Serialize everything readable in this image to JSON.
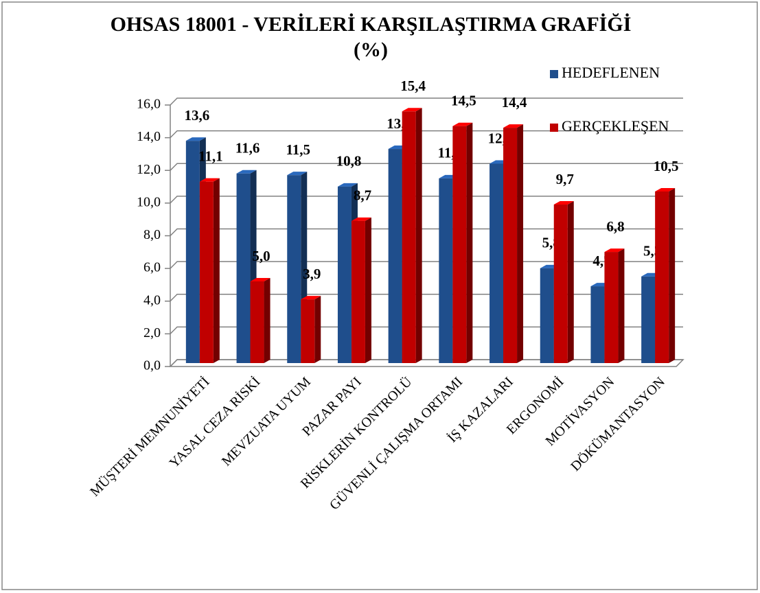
{
  "chart_data": {
    "type": "bar3d",
    "title": "OHSAS 18001 - VERİLERİ  KARŞILAŞTIRMA  GRAFİĞİ",
    "subtitle": "(%)",
    "categories": [
      "MÜŞTERİ MEMNUNİYETİ",
      "YASAL CEZA RİSKİ",
      "MEVZUATA UYUM",
      "PAZAR PAYI",
      "RİSKLERİN KONTROLÜ",
      "GÜVENLİ ÇALIŞMA ORTAMI",
      "İŞ KAZALARI",
      "ERGONOMİ",
      "MOTİVASYON",
      "DÖKÜMANTASYON"
    ],
    "series": [
      {
        "name": "HEDEFLENEN",
        "color": "#1f4e8c",
        "values": [
          13.6,
          11.6,
          11.5,
          10.8,
          13.1,
          11.3,
          12.2,
          5.8,
          4.7,
          5.3
        ],
        "value_labels": [
          "13,6",
          "11,6",
          "11,5",
          "10,8",
          "13,1",
          "11,3",
          "12,2",
          "5,8",
          "4,7",
          "5,3"
        ]
      },
      {
        "name": "GERÇEKLEŞEN",
        "color": "#c00000",
        "values": [
          11.1,
          5.0,
          3.9,
          8.7,
          15.4,
          14.5,
          14.4,
          9.7,
          6.8,
          10.5
        ],
        "value_labels": [
          "11,1",
          "5,0",
          "3,9",
          "8,7",
          "15,4",
          "14,5",
          "14,4",
          "9,7",
          "6,8",
          "10,5"
        ]
      }
    ],
    "ylim": [
      0,
      16
    ],
    "yticks": [
      {
        "value": 0,
        "label": "0,0"
      },
      {
        "value": 2,
        "label": "2,0"
      },
      {
        "value": 4,
        "label": "4,0"
      },
      {
        "value": 6,
        "label": "6,0"
      },
      {
        "value": 8,
        "label": "8,0"
      },
      {
        "value": 10,
        "label": "10,0"
      },
      {
        "value": 12,
        "label": "12,0"
      },
      {
        "value": 14,
        "label": "14,0"
      },
      {
        "value": 16,
        "label": "16,0"
      }
    ],
    "grid": true,
    "legend": "right"
  }
}
